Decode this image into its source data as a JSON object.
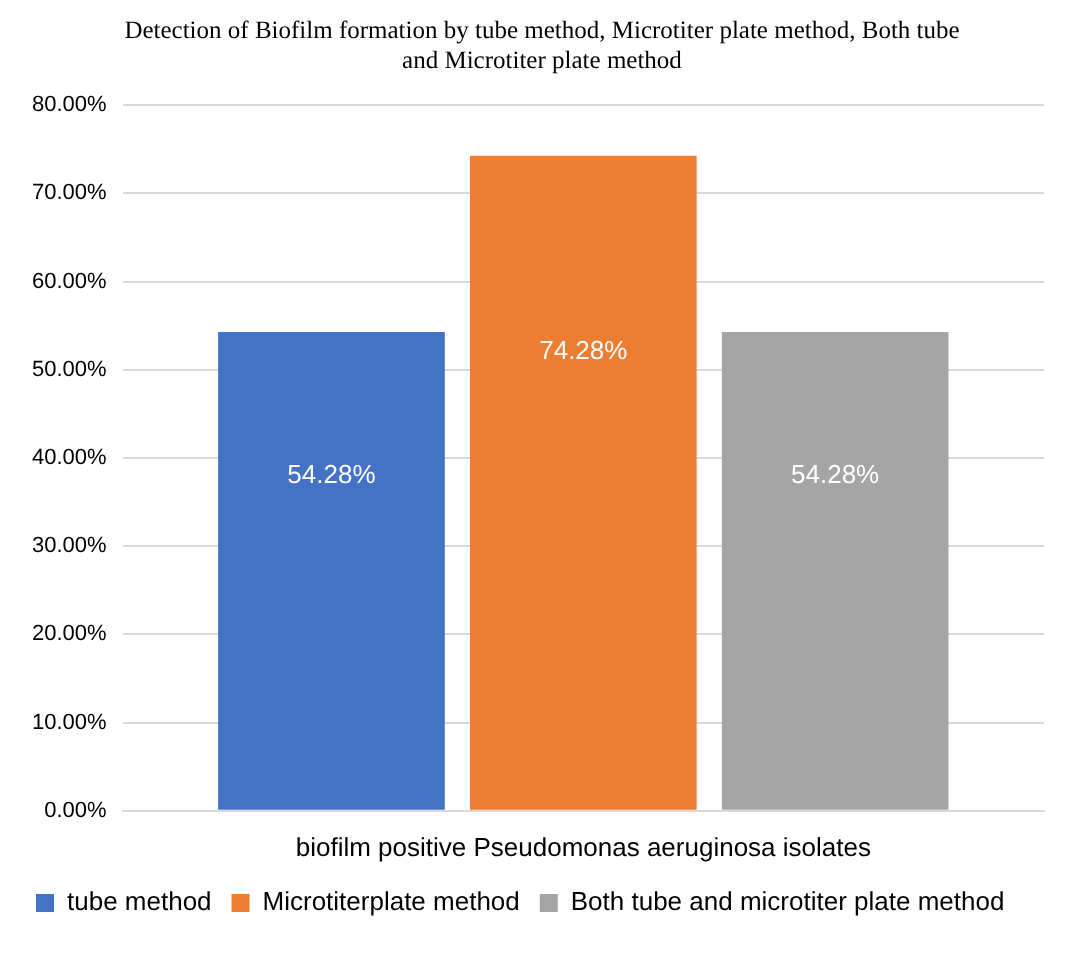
{
  "chart_data": {
    "type": "bar",
    "title": "Detection of Biofilm formation by tube method, Microtiter plate method, Both tube and Microtiter plate method",
    "categories": [
      "biofilm positive Pseudomonas aeruginosa isolates"
    ],
    "series": [
      {
        "name": "tube method",
        "color": "#4472c4",
        "values": [
          54.28
        ],
        "value_labels": [
          "54.28%"
        ]
      },
      {
        "name": "Microtiterplate method",
        "color": "#ed7d31",
        "values": [
          74.28
        ],
        "value_labels": [
          "74.28%"
        ]
      },
      {
        "name": "Both tube and microtiter plate method",
        "color": "#a5a5a5",
        "values": [
          54.28
        ],
        "value_labels": [
          "54.28%"
        ]
      }
    ],
    "ylim": [
      0,
      80
    ],
    "yticks": [
      {
        "value": 0,
        "label": "0.00%"
      },
      {
        "value": 10,
        "label": "10.00%"
      },
      {
        "value": 20,
        "label": "20.00%"
      },
      {
        "value": 30,
        "label": "30.00%"
      },
      {
        "value": 40,
        "label": "40.00%"
      },
      {
        "value": 50,
        "label": "50.00%"
      },
      {
        "value": 60,
        "label": "60.00%"
      },
      {
        "value": 70,
        "label": "70.00%"
      },
      {
        "value": 80,
        "label": "80.00%"
      }
    ],
    "grid": "y",
    "legend": "bottom"
  }
}
